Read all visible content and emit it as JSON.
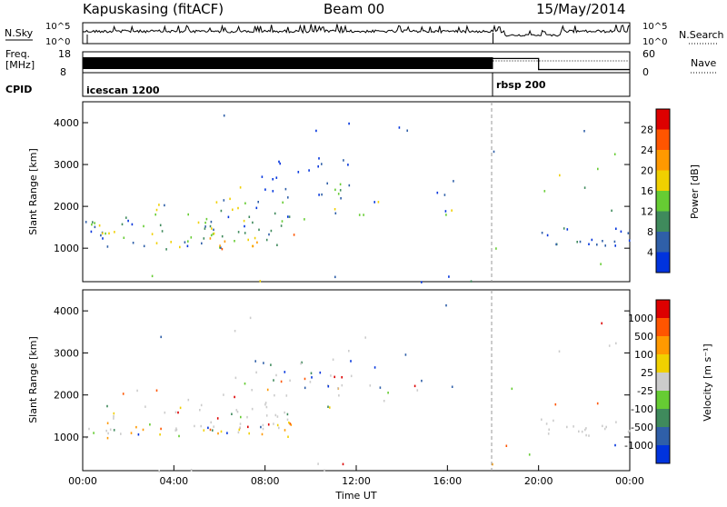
{
  "header": {
    "station": "Kapuskasing (fitACF)",
    "beam": "Beam 00",
    "date": "15/May/2014"
  },
  "colors": {
    "power": [
      "#0033dd",
      "#2f5fa8",
      "#3f8a5c",
      "#66cc33",
      "#f0d000",
      "#ff9900",
      "#ff5500",
      "#dd0000"
    ],
    "velocity": [
      "#dd0000",
      "#ff5500",
      "#ff9900",
      "#f0d000",
      "#cccccc",
      "#66cc33",
      "#3f8a5c",
      "#2f5fa8",
      "#0033dd"
    ],
    "noise_line": "#000000"
  },
  "chart_data": [
    {
      "type": "line",
      "name": "noise",
      "left_label": "N.Sky",
      "left_ticks": [
        "10^5",
        "10^0"
      ],
      "right_ticks": [
        "10^5",
        "10^0"
      ],
      "right_label": "N.Search",
      "x_range_hours": [
        0,
        24
      ]
    },
    {
      "type": "line",
      "name": "frequency",
      "left_label_1": "Freq.",
      "left_label_2": "[MHz]",
      "left_ticks": [
        "18",
        "8"
      ],
      "right_ticks": [
        "60",
        "0"
      ],
      "right_label": "Nave",
      "segments": [
        {
          "from": 0,
          "to": 18,
          "mode": "dense"
        },
        {
          "from": 18,
          "to": 20,
          "level": 0.68
        },
        {
          "from": 20,
          "to": 24,
          "level": 0.15
        }
      ]
    },
    {
      "type": "table",
      "name": "cpid",
      "left_label": "CPID",
      "entries": [
        {
          "label": "icescan 1200",
          "start": 0
        },
        {
          "label": "rbsp 200",
          "start": 18
        }
      ]
    },
    {
      "type": "heatmap",
      "name": "power",
      "ylabel": "Slant Range [km]",
      "xlabel": "",
      "y_ticks": [
        "1000",
        "2000",
        "3000",
        "4000"
      ],
      "ylim": [
        200,
        4500
      ],
      "colorbar_label": "Power [dB]",
      "colorbar_ticks": [
        "4",
        "8",
        "12",
        "16",
        "20",
        "24",
        "28"
      ]
    },
    {
      "type": "heatmap",
      "name": "velocity",
      "ylabel": "Slant Range [km]",
      "xlabel": "Time UT",
      "y_ticks": [
        "1000",
        "2000",
        "3000",
        "4000"
      ],
      "ylim": [
        200,
        4500
      ],
      "colorbar_label": "Velocity [m s⁻¹]",
      "colorbar_ticks": [
        "1000",
        "500",
        "100",
        "25",
        "-25",
        "-100",
        "-500",
        "-1000"
      ],
      "x_ticks": [
        "00:00",
        "04:00",
        "08:00",
        "12:00",
        "16:00",
        "20:00",
        "00:00"
      ]
    }
  ]
}
